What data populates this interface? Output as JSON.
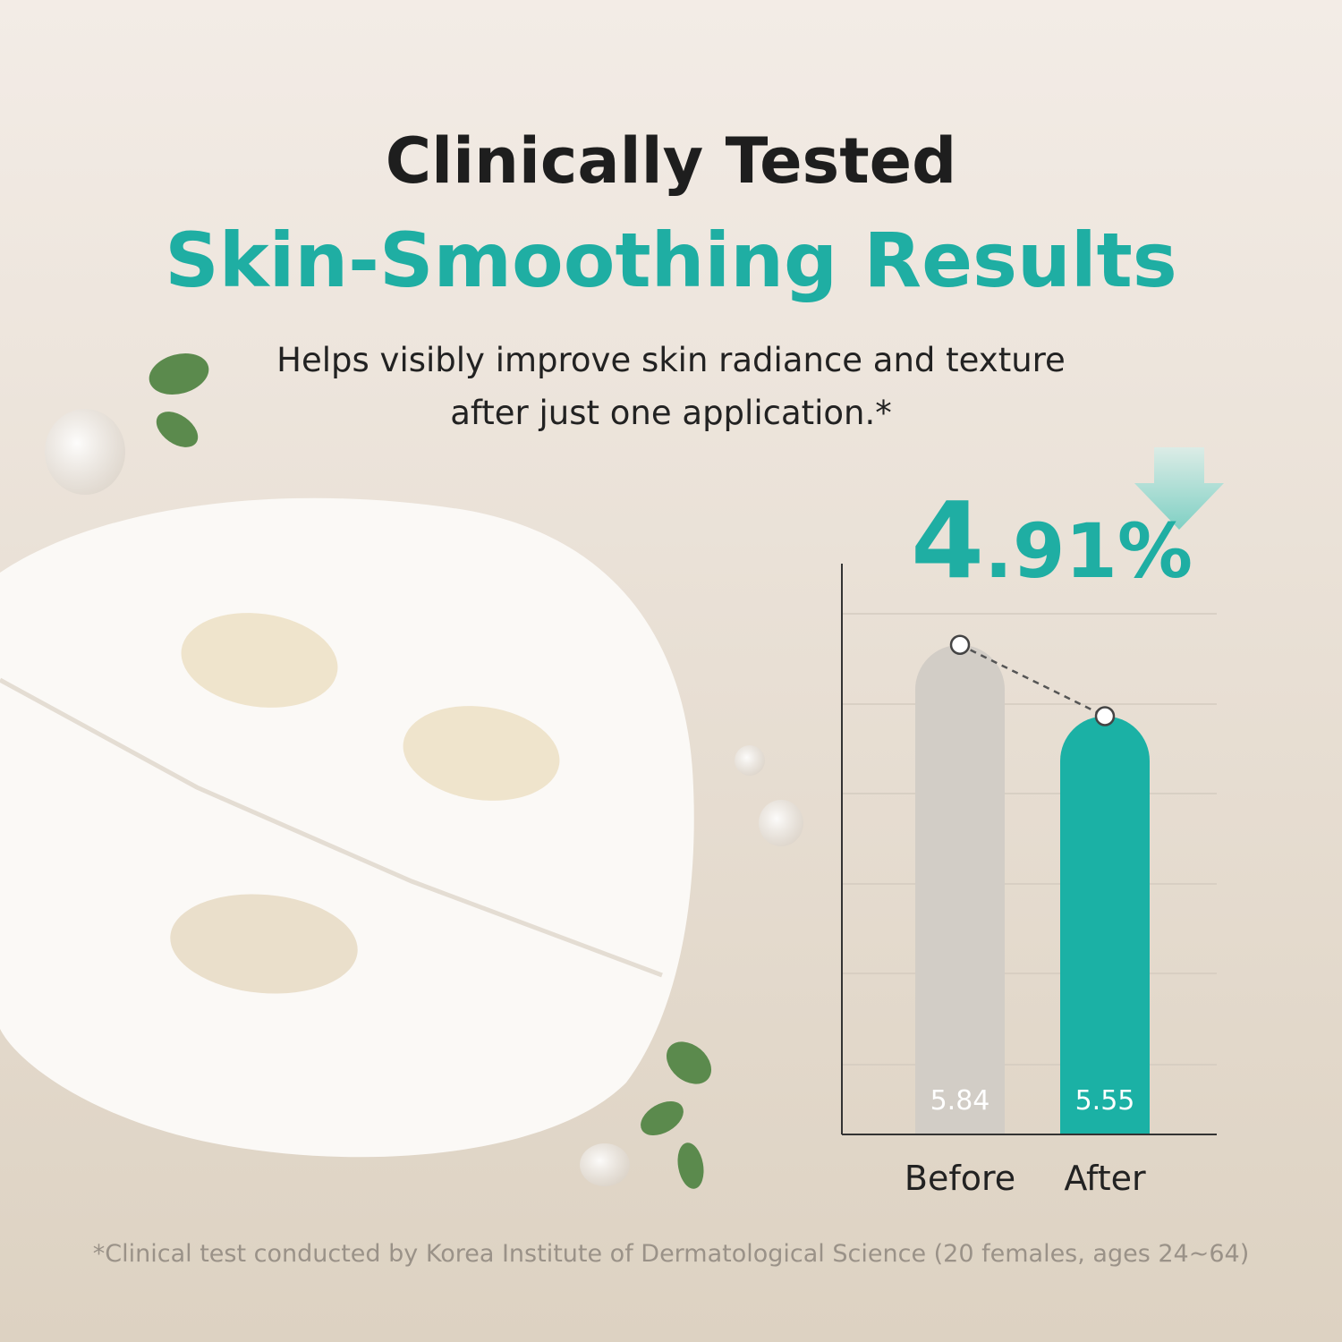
{
  "chart_data": {
    "type": "bar",
    "title": "Clinically Tested",
    "subtitle": "Skin-Smoothing Results",
    "description": [
      "Helps visibly improve skin radiance and texture",
      "after just one application.*"
    ],
    "annotation": "4.91%",
    "categories": [
      "Before",
      "After"
    ],
    "values": [
      5.84,
      5.55
    ],
    "colors": [
      "#d2cdc6",
      "#1bb1a5"
    ],
    "ylim": [
      3.85,
      6.17
    ],
    "footnote": "*Clinical test conducted by Korea Institute of Dermatological Science (20 females, ages 24~64)"
  }
}
